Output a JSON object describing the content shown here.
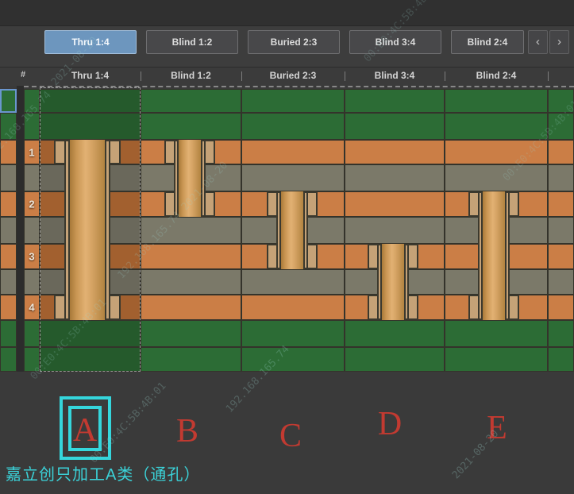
{
  "tabs": {
    "items": [
      {
        "label": "Thru 1:4",
        "selected": true
      },
      {
        "label": "Blind 1:2",
        "selected": false
      },
      {
        "label": "Buried 2:3",
        "selected": false
      },
      {
        "label": "Blind 3:4",
        "selected": false
      },
      {
        "label": "Blind 2:4",
        "selected": false
      }
    ],
    "prev_label": "‹",
    "next_label": "›"
  },
  "header": {
    "index_symbol": "#",
    "columns": [
      "Thru 1:4",
      "Blind 1:2",
      "Buried 2:3",
      "Blind 3:4",
      "Blind 2:4"
    ]
  },
  "layer_numbers": [
    "1",
    "2",
    "3",
    "4"
  ],
  "vias": [
    {
      "letter": "A",
      "name": "Thru 1:4",
      "span_layers": "1-4"
    },
    {
      "letter": "B",
      "name": "Blind 1:2",
      "span_layers": "1-2"
    },
    {
      "letter": "C",
      "name": "Buried 2:3",
      "span_layers": "2-3"
    },
    {
      "letter": "D",
      "name": "Blind 3:4",
      "span_layers": "3-4"
    },
    {
      "letter": "E",
      "name": "Blind 2:4",
      "span_layers": "2-4"
    }
  ],
  "note": {
    "text": "嘉立创只加工A类（通孔）"
  },
  "watermark": {
    "ip_date": "192.168.165.74 2021-08-20",
    "mac": "00:E0:4C:5B:4B:01",
    "date": "2021-08-20",
    "ip": "192.168.165.74"
  },
  "colors": {
    "selected_tab": "#6d96be",
    "soldermask_green": "#2c6c35",
    "copper_orange": "#cb7e46",
    "dielectric_gray": "#7b7969",
    "pad_tan": "#c5a277",
    "barrel_gold": "#e2b173",
    "highlight_cyan": "#35d6dc",
    "letter_red": "#c23a31"
  }
}
